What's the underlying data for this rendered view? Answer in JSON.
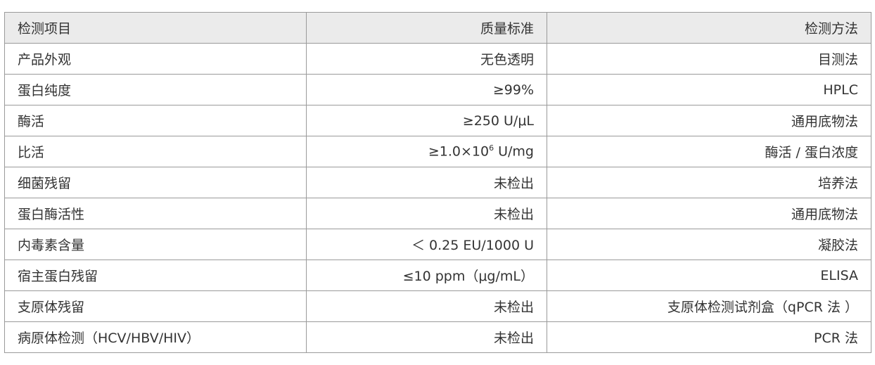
{
  "headers": [
    "检测项目",
    "质量标准",
    "检测方法"
  ],
  "rows": [
    {
      "item": "产品外观",
      "standard": "无色透明",
      "method": "目测法"
    },
    {
      "item": "蛋白纯度",
      "standard": "≥99%",
      "method": "HPLC"
    },
    {
      "item": "酶活",
      "standard": "≥250 U/μL",
      "method": "通用底物法"
    },
    {
      "item": "比活",
      "standard_prefix": "≥1.0×10",
      "standard_sup": "6",
      "standard_suffix": " U/mg",
      "method": "酶活 / 蛋白浓度"
    },
    {
      "item": "细菌残留",
      "standard": "未检出",
      "method": "培养法"
    },
    {
      "item": "蛋白酶活性",
      "standard": "未检出",
      "method": "通用底物法"
    },
    {
      "item": "内毒素含量",
      "standard": "＜ 0.25 EU/1000 U",
      "method": "凝胶法"
    },
    {
      "item": "宿主蛋白残留",
      "standard": "≤10 ppm（μg/mL）",
      "method": "ELISA"
    },
    {
      "item": "支原体残留",
      "standard": "未检出",
      "method": "支原体检测试剂盒（qPCR 法 ）"
    },
    {
      "item": "病原体检测（HCV/HBV/HIV）",
      "standard": "未检出",
      "method": "PCR 法"
    }
  ]
}
